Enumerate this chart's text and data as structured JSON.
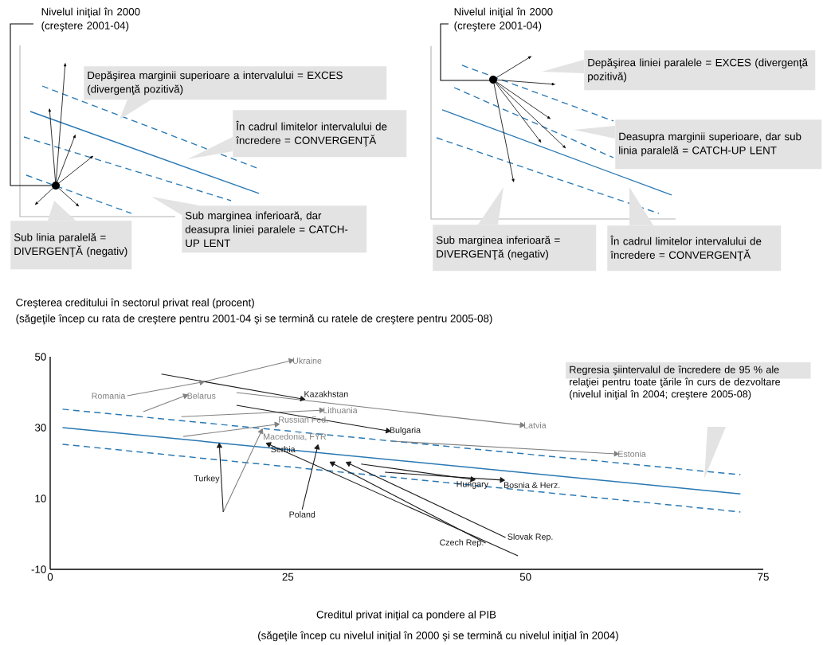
{
  "chart_data": [
    {
      "type": "other",
      "title": "Nivelul iniţial în 2000 (creştere 2001-04)",
      "annotations": [
        "Depăşirea marginii superioare a intervalului = EXCES (divergenţă pozitivă)",
        "În cadrul limitelor intervalului de încredere = CONVERGENŢĂ",
        "Sub marginea inferioară, dar deasupra liniei paralele = CATCH-UP LENT",
        "Sub linia paralelă = DIVERGENŢĂ (negativ)"
      ]
    },
    {
      "type": "other",
      "title": "Nivelul iniţial în 2000 (creştere 2001-04)",
      "annotations": [
        "Depăşirea liniei paralele = EXCES (divergenţă pozitivă)",
        "Deasupra marginii superioare, dar sub linia paralelă = CATCH-UP LENT",
        "Sub marginea inferioară = DIVERGENŢă (negativ)",
        "În cadrul limitelor intervalului de încredere = CONVERGENŢĂ"
      ]
    },
    {
      "type": "line",
      "title": "Creşterea creditului în sectorul privat real (procent)",
      "subtitle": "(săgeţile încep cu rata de creştere pentru 2001-04 şi se termină cu ratele de creştere pentru 2005-08)",
      "xlabel": "Creditul privat iniţial ca pondere al PIB",
      "annotations": [
        "(săgeţile încep cu nivelul iniţial în 2000 şi se termină cu nivelul iniţial în 2004)",
        "Regresia şiintervalul de încredere de 95 % ale relaţiei pentru toate ţările în curs de dezvoltare (nivelul iniţial în 2004; creştere 2005-08)"
      ],
      "xlim": [
        0,
        75
      ],
      "ylim": [
        -10,
        50
      ],
      "xticks": [
        0,
        25,
        50,
        75
      ],
      "yticks": [
        -10,
        10,
        30,
        50
      ],
      "series": [
        {
          "color": "#2878b4",
          "line_style": "solid",
          "x": [
            1.3,
            72.6
          ],
          "values": [
            30.0,
            11.3
          ]
        },
        {
          "color": "#2878b4",
          "line_style": "dashed",
          "x": [
            1.3,
            72.6
          ],
          "values": [
            35.2,
            16.7
          ]
        },
        {
          "color": "#2878b4",
          "line_style": "dashed",
          "x": [
            1.3,
            72.6
          ],
          "values": [
            25.3,
            6.2
          ]
        },
        {
          "name": "Romania",
          "color": "#808080",
          "marker": "triangle",
          "x": [
            8.1,
            15.9
          ],
          "values": [
            39.0,
            42.8
          ]
        },
        {
          "name": "Ukraine",
          "color": "#808080",
          "marker": "triangle",
          "x": [
            16.2,
            25.3
          ],
          "values": [
            43.0,
            48.9
          ]
        },
        {
          "name": "Kazakhstan",
          "color": "#1a1a1a",
          "marker": "triangle",
          "x": [
            11.7,
            26.5
          ],
          "values": [
            45.1,
            38.1
          ]
        },
        {
          "name": "Belarus",
          "color": "#808080",
          "marker": "triangle",
          "x": [
            9.8,
            14.2
          ],
          "values": [
            34.5,
            39.0
          ]
        },
        {
          "name": "Lithuania",
          "color": "#808080",
          "marker": "triangle",
          "x": [
            13.8,
            28.5
          ],
          "values": [
            33.1,
            34.9
          ]
        },
        {
          "name": "Latvia",
          "color": "#808080",
          "marker": "triangle",
          "x": [
            19.6,
            49.6
          ],
          "values": [
            39.9,
            30.7
          ]
        },
        {
          "name": "Bulgaria",
          "color": "#1a1a1a",
          "marker": "triangle",
          "x": [
            19.6,
            35.5
          ],
          "values": [
            36.3,
            29.1
          ]
        },
        {
          "name": "Russian Fed.",
          "color": "#808080",
          "marker": "triangle",
          "x": [
            14.0,
            23.8
          ],
          "values": [
            27.5,
            30.9
          ]
        },
        {
          "name": "Macedonia, FYR",
          "color": "#808080",
          "marker": "triangle",
          "x": [
            18.2,
            22.2
          ],
          "values": [
            6.2,
            28.9
          ]
        },
        {
          "name": "Turkey",
          "color": "#1a1a1a",
          "marker": "triangle",
          "x": [
            18.2,
            17.8
          ],
          "values": [
            6.2,
            24.8
          ]
        },
        {
          "name": "Poland",
          "color": "#1a1a1a",
          "marker": "triangle",
          "x": [
            26.5,
            28.1
          ],
          "values": [
            6.9,
            24.4
          ]
        },
        {
          "name": "Serbia",
          "color": "#1a1a1a",
          "marker": "triangle",
          "x": [
            49.2,
            23.0
          ],
          "values": [
            -6.2,
            25.3
          ]
        },
        {
          "name": "Slovak Rep.",
          "color": "#1a1a1a",
          "marker": "triangle",
          "x": [
            47.9,
            31.4
          ],
          "values": [
            -1.0,
            19.9
          ]
        },
        {
          "name": "Czech Rep.",
          "color": "#1a1a1a",
          "marker": "triangle",
          "x": [
            45.8,
            29.7
          ],
          "values": [
            -2.6,
            19.9
          ]
        },
        {
          "name": "Hungary",
          "color": "#1a1a1a",
          "marker": "triangle",
          "x": [
            32.7,
            44.4
          ],
          "values": [
            19.7,
            15.4
          ]
        },
        {
          "name": "Bosnia & Herz.",
          "color": "#1a1a1a",
          "marker": "triangle",
          "x": [
            35.2,
            47.5
          ],
          "values": [
            17.4,
            15.2
          ]
        },
        {
          "name": "Estonia",
          "color": "#808080",
          "marker": "triangle",
          "x": [
            35.9,
            59.5
          ],
          "values": [
            26.2,
            22.6
          ]
        }
      ]
    }
  ]
}
